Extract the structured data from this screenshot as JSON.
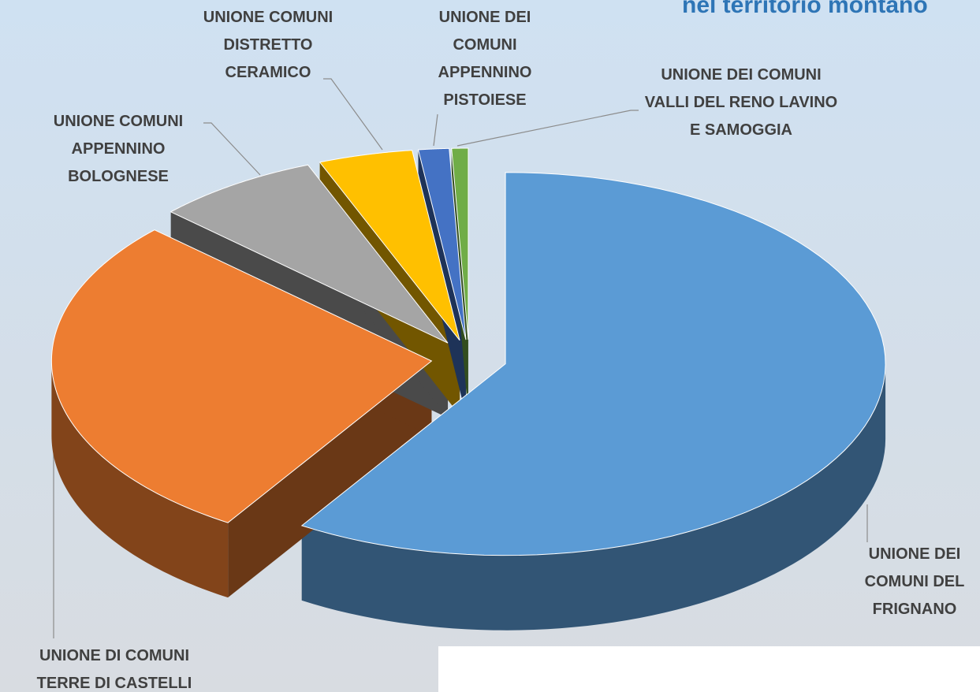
{
  "chart_data": {
    "type": "pie",
    "title": "nel territorio montano",
    "categories": [
      "UNIONE DEI COMUNI DEL FRIGNANO",
      "UNIONE DI COMUNI TERRE DI CASTELLI",
      "UNIONE COMUNI APPENNINO BOLOGNESE",
      "UNIONE COMUNI DISTRETTO CERAMICO",
      "UNIONE DEI COMUNI APPENNINO PISTOIESE",
      "UNIONE DEI COMUNI VALLI DEL RENO LAVINO E SAMOGGIA"
    ],
    "values": [
      59,
      28,
      7,
      4,
      1.3,
      0.7
    ],
    "colors": [
      "#5b9bd5",
      "#ed7d31",
      "#a5a5a5",
      "#ffc000",
      "#4472c4",
      "#70ad47"
    ]
  }
}
